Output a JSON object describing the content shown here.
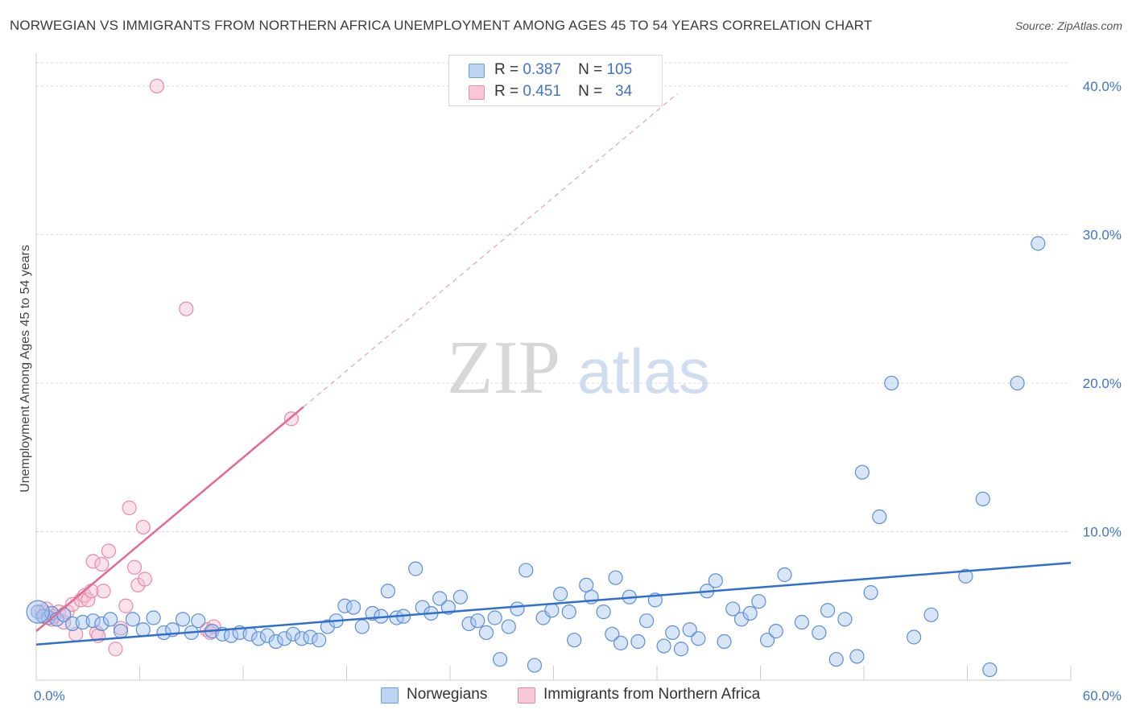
{
  "title": "NORWEGIAN VS IMMIGRANTS FROM NORTHERN AFRICA UNEMPLOYMENT AMONG AGES 45 TO 54 YEARS CORRELATION CHART",
  "source": "Source: ZipAtlas.com",
  "watermark": {
    "zip": "ZIP",
    "atlas": "atlas"
  },
  "legend": {
    "rows": [
      {
        "r_label": "R =",
        "r_value": "0.387",
        "n_label": "N =",
        "n_value": "105"
      },
      {
        "r_label": "R =",
        "r_value": "0.451",
        "n_label": "N =",
        "n_value": "34"
      }
    ]
  },
  "bottom_legend": {
    "series1": "Norwegians",
    "series2": "Immigrants from Northern Africa"
  },
  "colors": {
    "blue_fill": "#a9c6ee",
    "blue_stroke": "#5b8fd6",
    "blue_line": "#2f6fcf",
    "pink_fill": "#f6bfd0",
    "pink_stroke": "#e88aa7",
    "pink_line": "#e46a93",
    "grid": "#d9d9d9",
    "axis_text": "#3f74c8"
  },
  "chart_data": {
    "type": "scatter",
    "title": "NORWEGIAN VS IMMIGRANTS FROM NORTHERN AFRICA UNEMPLOYMENT AMONG AGES 45 TO 54 YEARS CORRELATION CHART",
    "xlabel": "",
    "ylabel": "Unemployment Among Ages 45 to 54 years",
    "xlim": [
      0,
      60
    ],
    "ylim": [
      0,
      42
    ],
    "x_tick_labels": [
      "0.0%",
      "60.0%"
    ],
    "y_ticks": [
      10,
      20,
      30,
      40
    ],
    "y_tick_labels": [
      "10.0%",
      "20.0%",
      "30.0%",
      "40.0%"
    ],
    "grid": true,
    "series": [
      {
        "name": "Norwegians",
        "r": 0.387,
        "n": 105,
        "trend": {
          "x0": 0,
          "y0": 2.4,
          "x1": 60,
          "y1": 7.9
        },
        "points": [
          [
            0.1,
            4.6
          ],
          [
            0.4,
            4.3
          ],
          [
            0.7,
            4.2
          ],
          [
            0.9,
            4.5
          ],
          [
            1.2,
            4.1
          ],
          [
            1.6,
            4.4
          ],
          [
            2.1,
            3.8
          ],
          [
            2.7,
            3.9
          ],
          [
            3.3,
            4.0
          ],
          [
            3.8,
            3.8
          ],
          [
            4.3,
            4.1
          ],
          [
            4.9,
            3.3
          ],
          [
            5.6,
            4.1
          ],
          [
            6.2,
            3.4
          ],
          [
            6.8,
            4.2
          ],
          [
            7.4,
            3.2
          ],
          [
            7.9,
            3.4
          ],
          [
            8.5,
            4.1
          ],
          [
            9.0,
            3.2
          ],
          [
            9.4,
            4.0
          ],
          [
            10.2,
            3.3
          ],
          [
            10.8,
            3.1
          ],
          [
            11.3,
            3.0
          ],
          [
            11.8,
            3.2
          ],
          [
            12.4,
            3.1
          ],
          [
            12.9,
            2.8
          ],
          [
            13.4,
            3.0
          ],
          [
            13.9,
            2.6
          ],
          [
            14.4,
            2.8
          ],
          [
            14.9,
            3.1
          ],
          [
            15.4,
            2.8
          ],
          [
            15.9,
            2.9
          ],
          [
            16.4,
            2.7
          ],
          [
            16.9,
            3.6
          ],
          [
            17.4,
            4.0
          ],
          [
            17.9,
            5.0
          ],
          [
            18.4,
            4.9
          ],
          [
            18.9,
            3.6
          ],
          [
            19.5,
            4.5
          ],
          [
            20.0,
            4.3
          ],
          [
            20.4,
            6.0
          ],
          [
            20.9,
            4.2
          ],
          [
            21.3,
            4.3
          ],
          [
            22.0,
            7.5
          ],
          [
            22.4,
            4.9
          ],
          [
            22.9,
            4.5
          ],
          [
            23.4,
            5.5
          ],
          [
            23.9,
            4.9
          ],
          [
            24.6,
            5.6
          ],
          [
            25.1,
            3.8
          ],
          [
            25.6,
            4.0
          ],
          [
            26.1,
            3.2
          ],
          [
            26.6,
            4.2
          ],
          [
            26.9,
            1.4
          ],
          [
            27.4,
            3.6
          ],
          [
            27.9,
            4.8
          ],
          [
            28.4,
            7.4
          ],
          [
            28.9,
            1.0
          ],
          [
            29.4,
            4.2
          ],
          [
            29.9,
            4.7
          ],
          [
            30.4,
            5.8
          ],
          [
            30.9,
            4.6
          ],
          [
            31.2,
            2.7
          ],
          [
            31.9,
            6.4
          ],
          [
            32.2,
            5.6
          ],
          [
            32.9,
            4.6
          ],
          [
            33.4,
            3.1
          ],
          [
            33.9,
            2.5
          ],
          [
            33.6,
            6.9
          ],
          [
            34.4,
            5.6
          ],
          [
            34.9,
            2.6
          ],
          [
            35.4,
            4.0
          ],
          [
            35.9,
            5.4
          ],
          [
            36.4,
            2.3
          ],
          [
            36.9,
            3.2
          ],
          [
            37.4,
            2.1
          ],
          [
            37.9,
            3.4
          ],
          [
            38.4,
            2.8
          ],
          [
            38.9,
            6.0
          ],
          [
            39.4,
            6.7
          ],
          [
            39.9,
            2.6
          ],
          [
            40.4,
            4.8
          ],
          [
            40.9,
            4.1
          ],
          [
            41.4,
            4.5
          ],
          [
            41.9,
            5.3
          ],
          [
            42.4,
            2.7
          ],
          [
            42.9,
            3.3
          ],
          [
            43.4,
            7.1
          ],
          [
            44.4,
            3.9
          ],
          [
            45.4,
            3.2
          ],
          [
            45.9,
            4.7
          ],
          [
            46.4,
            1.4
          ],
          [
            46.9,
            4.1
          ],
          [
            47.6,
            1.6
          ],
          [
            47.9,
            14.0
          ],
          [
            48.4,
            5.9
          ],
          [
            48.9,
            11.0
          ],
          [
            49.6,
            20.0
          ],
          [
            50.9,
            2.9
          ],
          [
            51.9,
            4.4
          ],
          [
            53.9,
            7.0
          ],
          [
            54.9,
            12.2
          ],
          [
            55.3,
            0.7
          ],
          [
            56.9,
            20.0
          ],
          [
            58.1,
            29.4
          ]
        ]
      },
      {
        "name": "Immigrants from Northern Africa",
        "r": 0.451,
        "n": 34,
        "trend": {
          "x0": 0,
          "y0": 3.3,
          "x1": 15.5,
          "y1": 18.4,
          "dashed_to_x": 37.2,
          "dashed_to_y": 39.5
        },
        "points": [
          [
            0.3,
            4.6
          ],
          [
            0.6,
            4.8
          ],
          [
            0.9,
            4.1
          ],
          [
            1.3,
            4.6
          ],
          [
            1.6,
            3.9
          ],
          [
            1.8,
            4.6
          ],
          [
            2.1,
            5.1
          ],
          [
            2.3,
            3.1
          ],
          [
            2.6,
            5.4
          ],
          [
            2.8,
            5.7
          ],
          [
            3.0,
            5.4
          ],
          [
            3.2,
            6.0
          ],
          [
            3.3,
            8.0
          ],
          [
            3.5,
            3.2
          ],
          [
            3.6,
            3.0
          ],
          [
            3.8,
            7.8
          ],
          [
            3.9,
            6.0
          ],
          [
            4.2,
            8.7
          ],
          [
            4.6,
            2.1
          ],
          [
            4.9,
            3.5
          ],
          [
            5.2,
            5.0
          ],
          [
            5.4,
            11.6
          ],
          [
            5.7,
            7.6
          ],
          [
            5.9,
            6.4
          ],
          [
            6.2,
            10.3
          ],
          [
            6.3,
            6.8
          ],
          [
            7.0,
            40.0
          ],
          [
            8.7,
            25.0
          ],
          [
            9.9,
            3.4
          ],
          [
            10.1,
            3.2
          ],
          [
            10.3,
            3.6
          ],
          [
            14.8,
            17.6
          ],
          [
            0.5,
            4.3
          ],
          [
            1.0,
            4.3
          ]
        ]
      }
    ]
  }
}
